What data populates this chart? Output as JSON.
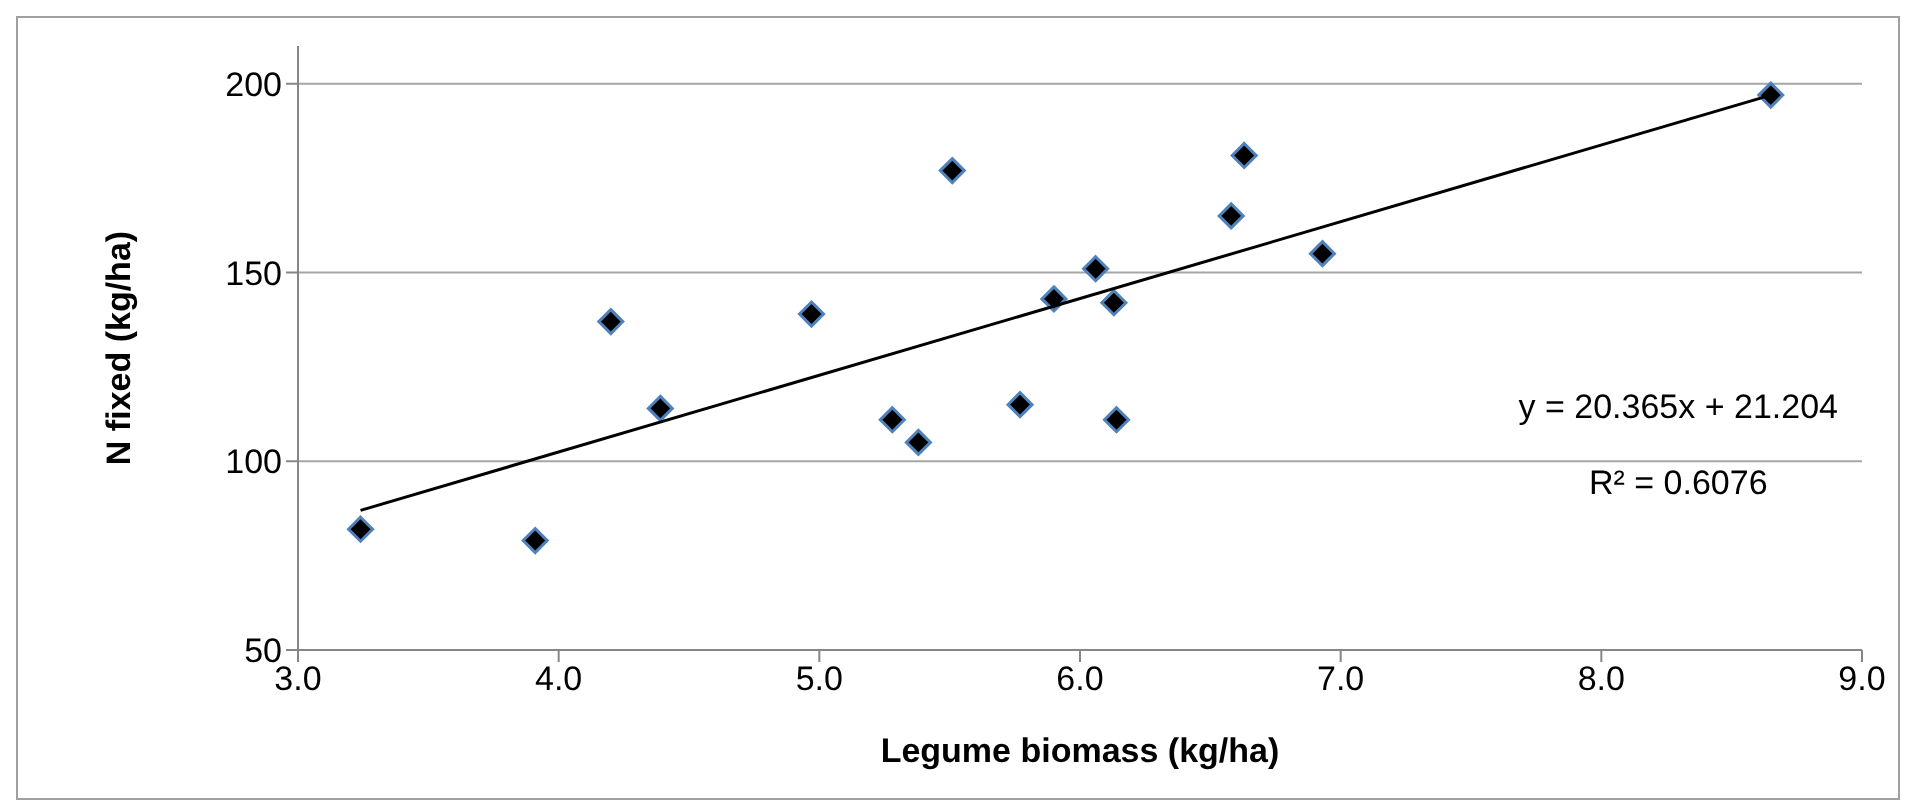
{
  "chart_data": {
    "type": "scatter",
    "xlabel": "Legume biomass (kg/ha)",
    "ylabel": "N fixed (kg/ha)",
    "xlim": [
      3.0,
      9.0
    ],
    "xticks": [
      {
        "value": 3,
        "label": "3.0"
      },
      {
        "value": 4,
        "label": "4.0"
      },
      {
        "value": 5,
        "label": "5.0"
      },
      {
        "value": 6,
        "label": "6.0"
      },
      {
        "value": 7,
        "label": "7.0"
      },
      {
        "value": 8,
        "label": "8.0"
      },
      {
        "value": 9,
        "label": "9.0"
      }
    ],
    "ylim": [
      50,
      210
    ],
    "yticks": [
      50,
      100,
      150,
      200
    ],
    "grid": "y",
    "marker": "diamond",
    "series": [
      {
        "color": "#000000",
        "x": [
          3.24,
          3.91,
          4.2,
          4.39,
          4.97,
          5.28,
          5.38,
          5.51,
          5.77,
          5.9,
          6.06,
          6.13,
          6.14,
          6.58,
          6.63,
          6.93,
          8.65
        ],
        "values": [
          82,
          79,
          137,
          114,
          139,
          111,
          105,
          177,
          115,
          143,
          151,
          142,
          111,
          165,
          181,
          155,
          197
        ]
      },
      {
        "type": "line",
        "marker": "none",
        "color": "#000000",
        "x": [
          3.24,
          8.65
        ],
        "values": [
          87,
          197
        ]
      }
    ],
    "annotations": [
      "y = 20.365x + 21.204",
      "R² = 0.6076"
    ]
  }
}
